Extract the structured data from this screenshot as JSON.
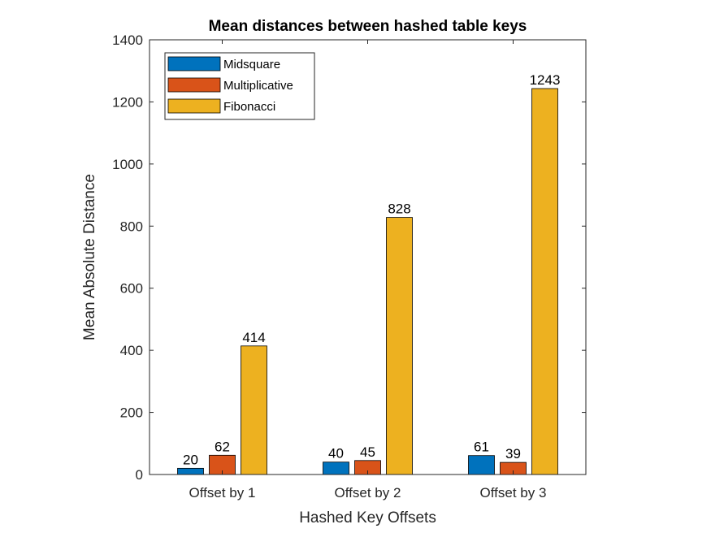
{
  "chart_data": {
    "type": "bar",
    "title": "Mean distances between hashed table keys",
    "xlabel": "Hashed Key Offsets",
    "ylabel": "Mean Absolute Distance",
    "categories": [
      "Offset by 1",
      "Offset by 2",
      "Offset by 3"
    ],
    "series": [
      {
        "name": "Midsquare",
        "color": "#0072BD",
        "values": [
          20,
          40,
          61
        ]
      },
      {
        "name": "Multiplicative",
        "color": "#D95319",
        "values": [
          62,
          45,
          39
        ]
      },
      {
        "name": "Fibonacci",
        "color": "#EDB120",
        "values": [
          414,
          828,
          1243
        ]
      }
    ],
    "ylim": [
      0,
      1400
    ],
    "yticks": [
      0,
      200,
      400,
      600,
      800,
      1000,
      1200,
      1400
    ],
    "grid": false,
    "legend_position": "top-left",
    "data_labels": true
  }
}
